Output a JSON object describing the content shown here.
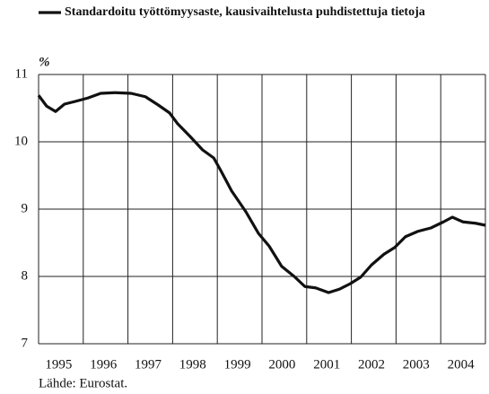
{
  "chart_data": {
    "type": "line",
    "unit": "%",
    "source": "Lähde: Eurostat.",
    "xlim": [
      1995,
      2005
    ],
    "xticks": [
      1995,
      1996,
      1997,
      1998,
      1999,
      2000,
      2001,
      2002,
      2003,
      2004
    ],
    "ylim": [
      7,
      11
    ],
    "yticks": [
      7,
      8,
      9,
      10,
      11
    ],
    "grid": true,
    "x": [
      1995.0,
      1995.18,
      1995.38,
      1995.58,
      1995.82,
      1996.1,
      1996.39,
      1996.71,
      1997.07,
      1997.39,
      1997.67,
      1997.93,
      1998.11,
      1998.39,
      1998.67,
      1998.92,
      1999.08,
      1999.32,
      1999.64,
      1999.92,
      2000.16,
      2000.44,
      2000.72,
      2000.96,
      2001.2,
      2001.49,
      2001.73,
      2001.97,
      2002.21,
      2002.45,
      2002.73,
      2002.97,
      2003.21,
      2003.49,
      2003.78,
      2004.06,
      2004.26,
      2004.5,
      2004.78,
      2005.0
    ],
    "series": [
      {
        "name": "Standardoitu työttömyysaste, kausivaihtelusta puhdistettuja tietoja",
        "color": "#111111",
        "values": [
          10.69,
          10.53,
          10.45,
          10.56,
          10.6,
          10.65,
          10.72,
          10.73,
          10.72,
          10.67,
          10.55,
          10.43,
          10.27,
          10.08,
          9.88,
          9.76,
          9.57,
          9.27,
          8.96,
          8.64,
          8.45,
          8.15,
          8.0,
          7.85,
          7.83,
          7.76,
          7.81,
          7.89,
          7.99,
          8.17,
          8.33,
          8.43,
          8.59,
          8.67,
          8.72,
          8.81,
          8.88,
          8.81,
          8.79,
          8.76
        ]
      }
    ]
  }
}
